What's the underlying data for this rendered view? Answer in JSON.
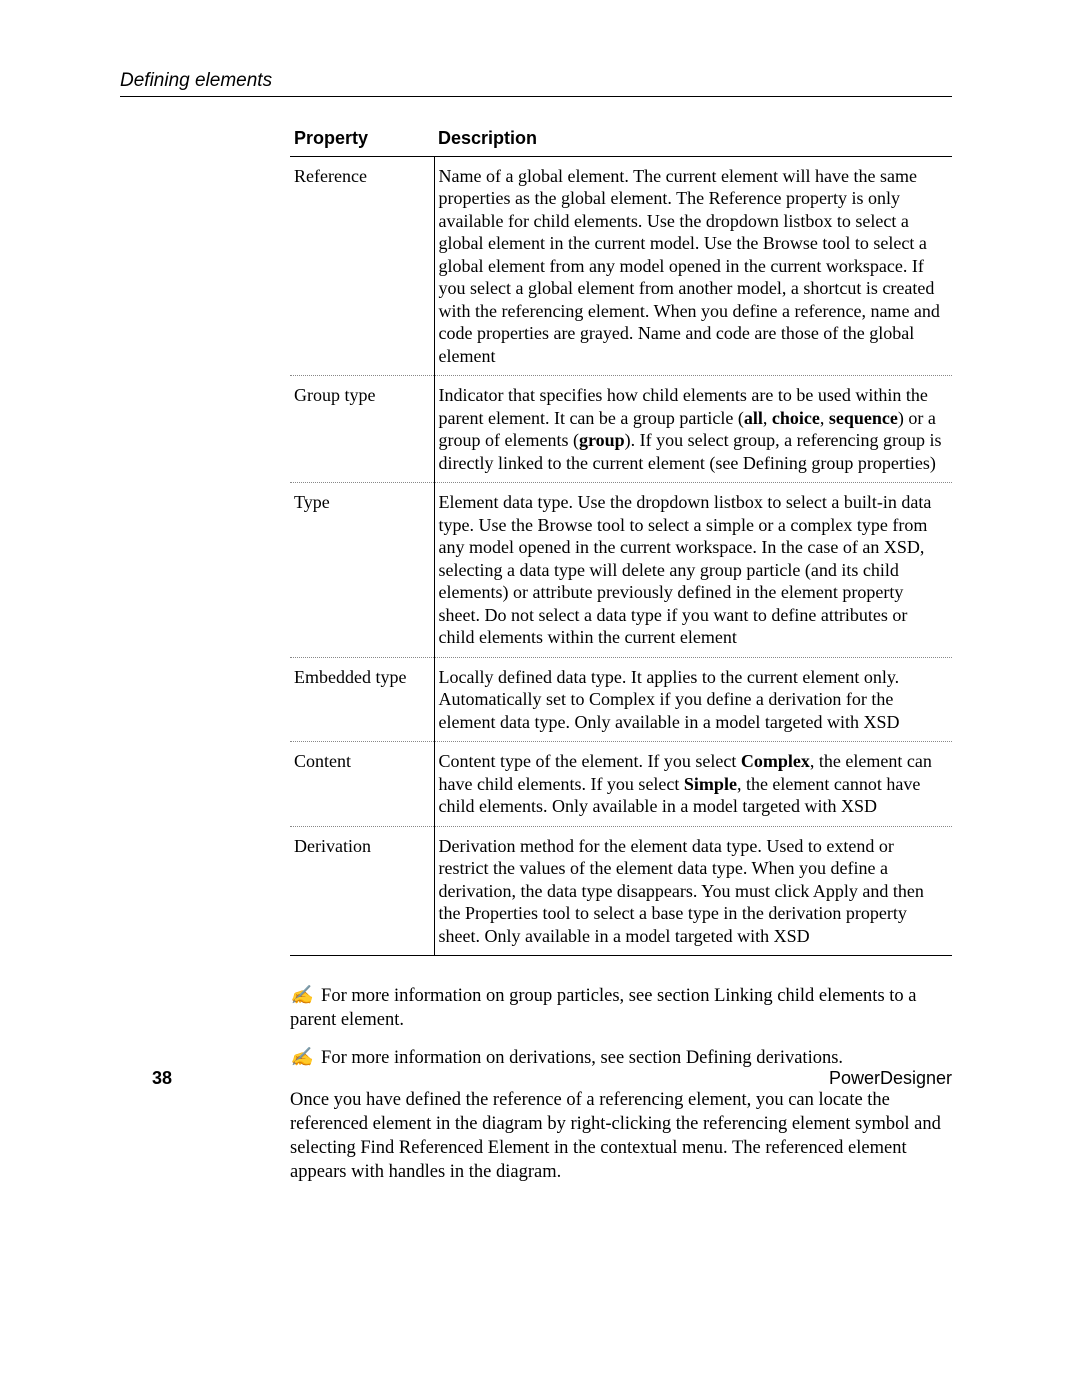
{
  "header": {
    "running_title": "Defining elements"
  },
  "table": {
    "columns": {
      "property": "Property",
      "description": "Description"
    },
    "rows": [
      {
        "property": "Reference",
        "description_html": "Name of a global element. The current element will have the same properties as the global element. The Reference property is only available for child elements. Use the dropdown listbox to select a global element in the current model. Use the Browse tool to select a global element from any model opened in the current workspace. If you select a global element from another model, a shortcut is created with the referencing element. When you define a reference, name and code properties are grayed. Name and code are those of the global element"
      },
      {
        "property": "Group type",
        "description_html": "Indicator that specifies how child elements are to be used within the parent element. It can be a group particle (<b>all</b>, <b>choice</b>, <b>sequence</b>) or a group of elements (<b>group</b>). If you select group, a referencing group is directly linked to the current element (see Defining group properties)"
      },
      {
        "property": "Type",
        "description_html": "Element data type. Use the dropdown listbox to select a built-in data type. Use the Browse tool to select a simple or a complex type from any model opened in the current workspace. In the case of an XSD, selecting a data type will delete any group particle (and its child elements) or attribute previously defined in the element property sheet. Do not select a data type if you want to define attributes or child elements within the current element"
      },
      {
        "property": "Embedded type",
        "description_html": "Locally defined data type. It applies to the current element only. Automatically set to Complex if you define a derivation for the element data type. Only available in a model targeted with XSD"
      },
      {
        "property": "Content",
        "description_html": "Content type of the element. If you select <b>Complex</b>, the element can have child elements. If you select <b>Simple</b>, the element cannot have child elements. Only available in a model targeted with XSD"
      },
      {
        "property": "Derivation",
        "description_html": "Derivation method for the element data type. Used to extend or restrict the values of the element data type. When you define a derivation, the data type disappears. You must click Apply and then the Properties tool to select a base type in the derivation property sheet. Only available in a model targeted with XSD"
      }
    ]
  },
  "notes": [
    "For more information on group particles, see section Linking child elements to a parent element.",
    "For more information on derivations, see section Defining derivations."
  ],
  "body_para": "Once you have defined the reference of a referencing element, you can locate the referenced element in the diagram by right-clicking the referencing element symbol and selecting Find Referenced Element in the contextual menu. The referenced element appears with handles in the diagram.",
  "footer": {
    "page_number": "38",
    "product": "PowerDesigner"
  },
  "style": {
    "note_glyph": "✍"
  }
}
